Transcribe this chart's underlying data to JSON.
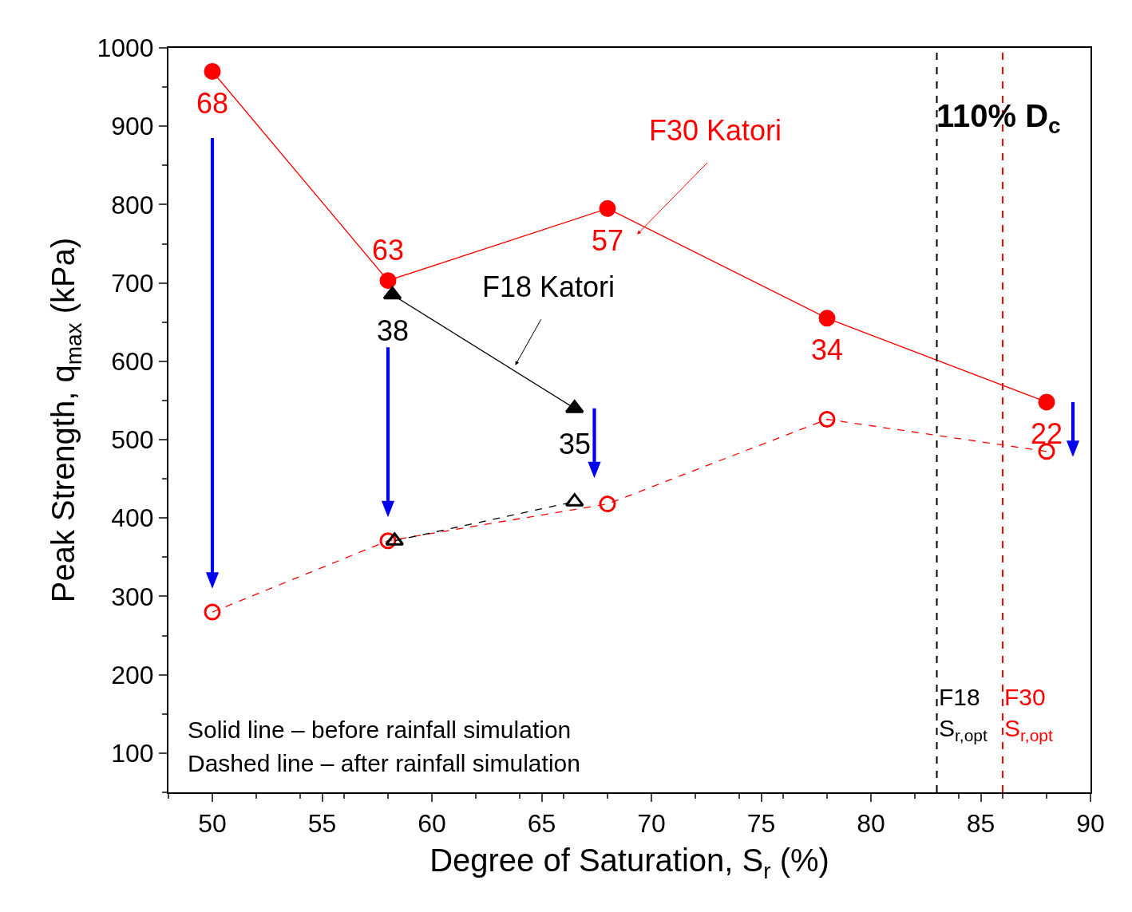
{
  "chart_data": {
    "type": "line",
    "xlabel": "Degree of Saturation, S$_{r}$ (%)",
    "ylabel": "Peak Strength, q$_{max}$ (kPa)",
    "xlim": [
      48,
      90
    ],
    "xticks": [
      50,
      55,
      60,
      65,
      70,
      75,
      80,
      85,
      90
    ],
    "ylim": [
      50,
      1000
    ],
    "yticks": [
      100,
      200,
      300,
      400,
      500,
      600,
      700,
      800,
      900,
      1000
    ],
    "series": [
      {
        "color": "#ff0000",
        "x": [
          50,
          58,
          68,
          78,
          88
        ],
        "values": [
          970,
          703,
          795,
          655,
          548
        ],
        "marker": "circle",
        "line_style": "solid"
      },
      {
        "color": "#000000",
        "x": [
          58.2,
          66.5
        ],
        "values": [
          685,
          540
        ],
        "marker": "triangle",
        "line_style": "solid"
      },
      {
        "color": "#ff0000",
        "x": [
          50,
          58,
          68,
          78,
          88
        ],
        "values": [
          280,
          371,
          418,
          526,
          485
        ],
        "marker": "circle",
        "line_style": "dashed"
      },
      {
        "color": "#000000",
        "x": [
          58.3,
          66.5
        ],
        "values": [
          371,
          421
        ],
        "marker": "triangle",
        "line_style": "dashed"
      }
    ],
    "ref_lines": [
      {
        "axis": "x",
        "value": 83,
        "label": "F18\nS$_{r,opt}$",
        "color": "#000000",
        "line_style": "dashed"
      },
      {
        "axis": "x",
        "value": 86,
        "label": "F30\nS$_{r,opt}$",
        "color": "#ff0000",
        "line_style": "dashed"
      }
    ],
    "annotations": [
      {
        "text": "68",
        "x": 50,
        "y": 970
      },
      {
        "text": "63",
        "x": 58,
        "y": 703
      },
      {
        "text": "57",
        "x": 68,
        "y": 795
      },
      {
        "text": "34",
        "x": 78,
        "y": 655
      },
      {
        "text": "22",
        "x": 88,
        "y": 548
      },
      {
        "text": "38",
        "x": 58.2,
        "y": 685
      },
      {
        "text": "35",
        "x": 66.5,
        "y": 540
      },
      "F30 Katori",
      "F18 Katori",
      "110% D$_{c}$",
      "Solid line – before rainfall simulation",
      "Dashed line – after rainfall simulation"
    ]
  }
}
